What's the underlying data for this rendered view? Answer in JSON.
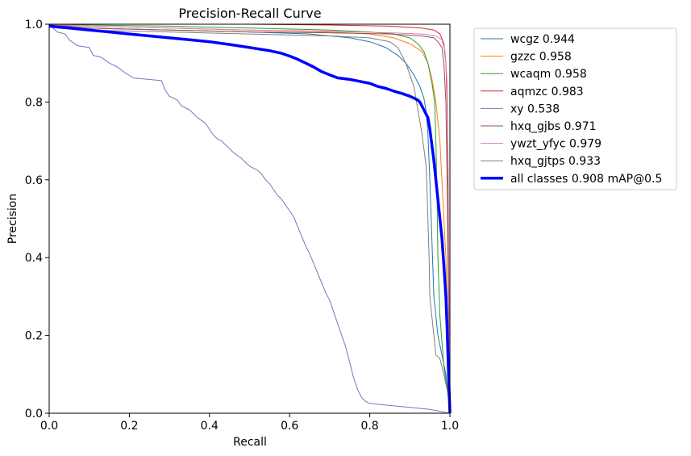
{
  "chart_data": {
    "type": "line",
    "title": "Precision-Recall Curve",
    "xlabel": "Recall",
    "ylabel": "Precision",
    "xlim": [
      0,
      1
    ],
    "ylim": [
      0,
      1
    ],
    "xticks": [
      "0.0",
      "0.2",
      "0.4",
      "0.6",
      "0.8",
      "1.0"
    ],
    "yticks": [
      "0.0",
      "0.2",
      "0.4",
      "0.6",
      "0.8",
      "1.0"
    ],
    "grid": false,
    "legend_position": "outside-right-top",
    "series": [
      {
        "name": "wcgz 0.944",
        "color": "#1f77b4",
        "line_width": 1,
        "points": [
          [
            0,
            1.0
          ],
          [
            0.02,
            0.995
          ],
          [
            0.1,
            0.99
          ],
          [
            0.3,
            0.985
          ],
          [
            0.5,
            0.98
          ],
          [
            0.65,
            0.975
          ],
          [
            0.75,
            0.965
          ],
          [
            0.8,
            0.955
          ],
          [
            0.84,
            0.94
          ],
          [
            0.87,
            0.92
          ],
          [
            0.89,
            0.9
          ],
          [
            0.91,
            0.87
          ],
          [
            0.925,
            0.84
          ],
          [
            0.935,
            0.81
          ],
          [
            0.94,
            0.78
          ],
          [
            0.945,
            0.72
          ],
          [
            0.95,
            0.6
          ],
          [
            0.955,
            0.45
          ],
          [
            0.96,
            0.3
          ],
          [
            0.97,
            0.2
          ],
          [
            0.98,
            0.15
          ],
          [
            0.99,
            0.1
          ],
          [
            1.0,
            0.0
          ]
        ]
      },
      {
        "name": "gzzc 0.958",
        "color": "#ff7f0e",
        "line_width": 1,
        "points": [
          [
            0,
            1.0
          ],
          [
            0.1,
            0.995
          ],
          [
            0.3,
            0.99
          ],
          [
            0.5,
            0.985
          ],
          [
            0.7,
            0.98
          ],
          [
            0.8,
            0.975
          ],
          [
            0.86,
            0.965
          ],
          [
            0.9,
            0.95
          ],
          [
            0.93,
            0.93
          ],
          [
            0.945,
            0.9
          ],
          [
            0.955,
            0.86
          ],
          [
            0.965,
            0.8
          ],
          [
            0.975,
            0.7
          ],
          [
            0.98,
            0.6
          ],
          [
            0.985,
            0.5
          ],
          [
            0.99,
            0.4
          ],
          [
            0.995,
            0.2
          ],
          [
            1.0,
            0.0
          ]
        ]
      },
      {
        "name": "wcaqm 0.958",
        "color": "#2ca02c",
        "line_width": 1,
        "points": [
          [
            0,
            1.0
          ],
          [
            0.1,
            0.998
          ],
          [
            0.3,
            0.995
          ],
          [
            0.5,
            0.99
          ],
          [
            0.7,
            0.985
          ],
          [
            0.8,
            0.98
          ],
          [
            0.86,
            0.975
          ],
          [
            0.9,
            0.965
          ],
          [
            0.92,
            0.95
          ],
          [
            0.935,
            0.93
          ],
          [
            0.945,
            0.9
          ],
          [
            0.955,
            0.85
          ],
          [
            0.962,
            0.8
          ],
          [
            0.965,
            0.7
          ],
          [
            0.968,
            0.55
          ],
          [
            0.97,
            0.4
          ],
          [
            0.975,
            0.25
          ],
          [
            0.985,
            0.12
          ],
          [
            0.995,
            0.05
          ],
          [
            1.0,
            0.0
          ]
        ]
      },
      {
        "name": "aqmzc 0.983",
        "color": "#d62728",
        "line_width": 1,
        "points": [
          [
            0,
            1.0
          ],
          [
            0.2,
            1.0
          ],
          [
            0.5,
            1.0
          ],
          [
            0.7,
            0.998
          ],
          [
            0.85,
            0.995
          ],
          [
            0.93,
            0.99
          ],
          [
            0.96,
            0.985
          ],
          [
            0.975,
            0.975
          ],
          [
            0.985,
            0.95
          ],
          [
            0.99,
            0.9
          ],
          [
            0.993,
            0.8
          ],
          [
            0.995,
            0.6
          ],
          [
            0.997,
            0.3
          ],
          [
            1.0,
            0.0
          ]
        ]
      },
      {
        "name": "xy 0.538",
        "color": "#9467bd",
        "line_width": 1,
        "points": [
          [
            0,
            1.0
          ],
          [
            0.01,
            0.99
          ],
          [
            0.02,
            0.98
          ],
          [
            0.04,
            0.975
          ],
          [
            0.05,
            0.96
          ],
          [
            0.07,
            0.945
          ],
          [
            0.1,
            0.94
          ],
          [
            0.11,
            0.92
          ],
          [
            0.13,
            0.915
          ],
          [
            0.15,
            0.9
          ],
          [
            0.17,
            0.89
          ],
          [
            0.19,
            0.875
          ],
          [
            0.21,
            0.862
          ],
          [
            0.23,
            0.86
          ],
          [
            0.28,
            0.855
          ],
          [
            0.29,
            0.83
          ],
          [
            0.3,
            0.815
          ],
          [
            0.32,
            0.805
          ],
          [
            0.33,
            0.79
          ],
          [
            0.35,
            0.78
          ],
          [
            0.37,
            0.76
          ],
          [
            0.39,
            0.745
          ],
          [
            0.4,
            0.73
          ],
          [
            0.41,
            0.715
          ],
          [
            0.42,
            0.705
          ],
          [
            0.43,
            0.7
          ],
          [
            0.44,
            0.69
          ],
          [
            0.45,
            0.68
          ],
          [
            0.46,
            0.67
          ],
          [
            0.48,
            0.655
          ],
          [
            0.49,
            0.645
          ],
          [
            0.5,
            0.635
          ],
          [
            0.52,
            0.625
          ],
          [
            0.53,
            0.615
          ],
          [
            0.54,
            0.6
          ],
          [
            0.55,
            0.59
          ],
          [
            0.56,
            0.575
          ],
          [
            0.57,
            0.56
          ],
          [
            0.58,
            0.55
          ],
          [
            0.59,
            0.535
          ],
          [
            0.6,
            0.52
          ],
          [
            0.61,
            0.505
          ],
          [
            0.62,
            0.48
          ],
          [
            0.63,
            0.455
          ],
          [
            0.64,
            0.43
          ],
          [
            0.65,
            0.41
          ],
          [
            0.66,
            0.385
          ],
          [
            0.67,
            0.36
          ],
          [
            0.68,
            0.335
          ],
          [
            0.69,
            0.31
          ],
          [
            0.7,
            0.29
          ],
          [
            0.71,
            0.26
          ],
          [
            0.72,
            0.23
          ],
          [
            0.73,
            0.2
          ],
          [
            0.74,
            0.17
          ],
          [
            0.75,
            0.13
          ],
          [
            0.76,
            0.09
          ],
          [
            0.77,
            0.06
          ],
          [
            0.78,
            0.04
          ],
          [
            0.79,
            0.03
          ],
          [
            0.8,
            0.025
          ],
          [
            0.85,
            0.02
          ],
          [
            0.9,
            0.015
          ],
          [
            0.95,
            0.01
          ],
          [
            1.0,
            0.0
          ]
        ]
      },
      {
        "name": "hxq_gjbs 0.971",
        "color": "#8c564b",
        "line_width": 1,
        "points": [
          [
            0,
            1.0
          ],
          [
            0.1,
            0.99
          ],
          [
            0.3,
            0.985
          ],
          [
            0.5,
            0.98
          ],
          [
            0.7,
            0.978
          ],
          [
            0.85,
            0.975
          ],
          [
            0.93,
            0.97
          ],
          [
            0.96,
            0.965
          ],
          [
            0.97,
            0.955
          ],
          [
            0.98,
            0.94
          ],
          [
            0.985,
            0.9
          ],
          [
            0.99,
            0.8
          ],
          [
            0.993,
            0.6
          ],
          [
            0.996,
            0.3
          ],
          [
            1.0,
            0.0
          ]
        ]
      },
      {
        "name": "ywzt_yfyc 0.979",
        "color": "#e377c2",
        "line_width": 1,
        "points": [
          [
            0,
            1.0
          ],
          [
            0.1,
            0.995
          ],
          [
            0.3,
            0.99
          ],
          [
            0.5,
            0.985
          ],
          [
            0.7,
            0.982
          ],
          [
            0.85,
            0.978
          ],
          [
            0.93,
            0.975
          ],
          [
            0.965,
            0.97
          ],
          [
            0.98,
            0.96
          ],
          [
            0.988,
            0.93
          ],
          [
            0.993,
            0.85
          ],
          [
            0.996,
            0.6
          ],
          [
            0.998,
            0.3
          ],
          [
            1.0,
            0.0
          ]
        ]
      },
      {
        "name": "hxq_gjtps 0.933",
        "color": "#7f7f7f",
        "line_width": 1,
        "points": [
          [
            0,
            1.0
          ],
          [
            0.02,
            0.99
          ],
          [
            0.1,
            0.985
          ],
          [
            0.3,
            0.98
          ],
          [
            0.5,
            0.975
          ],
          [
            0.7,
            0.97
          ],
          [
            0.8,
            0.965
          ],
          [
            0.85,
            0.955
          ],
          [
            0.87,
            0.94
          ],
          [
            0.88,
            0.92
          ],
          [
            0.89,
            0.9
          ],
          [
            0.9,
            0.87
          ],
          [
            0.91,
            0.84
          ],
          [
            0.915,
            0.81
          ],
          [
            0.92,
            0.78
          ],
          [
            0.925,
            0.75
          ],
          [
            0.93,
            0.72
          ],
          [
            0.935,
            0.68
          ],
          [
            0.94,
            0.64
          ],
          [
            0.942,
            0.6
          ],
          [
            0.945,
            0.5
          ],
          [
            0.948,
            0.4
          ],
          [
            0.95,
            0.3
          ],
          [
            0.955,
            0.25
          ],
          [
            0.96,
            0.2
          ],
          [
            0.965,
            0.15
          ],
          [
            0.975,
            0.14
          ],
          [
            0.985,
            0.1
          ],
          [
            0.995,
            0.05
          ],
          [
            1.0,
            0.0
          ]
        ]
      },
      {
        "name": "all classes 0.908 mAP@0.5",
        "color": "#0000ff",
        "line_width": 3.5,
        "points": [
          [
            0,
            0.995
          ],
          [
            0.05,
            0.99
          ],
          [
            0.1,
            0.985
          ],
          [
            0.15,
            0.98
          ],
          [
            0.2,
            0.975
          ],
          [
            0.25,
            0.97
          ],
          [
            0.3,
            0.965
          ],
          [
            0.35,
            0.96
          ],
          [
            0.4,
            0.955
          ],
          [
            0.45,
            0.948
          ],
          [
            0.5,
            0.94
          ],
          [
            0.55,
            0.932
          ],
          [
            0.58,
            0.925
          ],
          [
            0.6,
            0.918
          ],
          [
            0.62,
            0.91
          ],
          [
            0.64,
            0.9
          ],
          [
            0.66,
            0.89
          ],
          [
            0.68,
            0.878
          ],
          [
            0.7,
            0.87
          ],
          [
            0.72,
            0.862
          ],
          [
            0.75,
            0.858
          ],
          [
            0.78,
            0.852
          ],
          [
            0.8,
            0.848
          ],
          [
            0.82,
            0.84
          ],
          [
            0.84,
            0.835
          ],
          [
            0.86,
            0.828
          ],
          [
            0.88,
            0.822
          ],
          [
            0.9,
            0.815
          ],
          [
            0.91,
            0.81
          ],
          [
            0.92,
            0.805
          ],
          [
            0.925,
            0.8
          ],
          [
            0.93,
            0.79
          ],
          [
            0.935,
            0.78
          ],
          [
            0.94,
            0.77
          ],
          [
            0.945,
            0.76
          ],
          [
            0.95,
            0.73
          ],
          [
            0.955,
            0.69
          ],
          [
            0.96,
            0.65
          ],
          [
            0.965,
            0.6
          ],
          [
            0.97,
            0.55
          ],
          [
            0.975,
            0.5
          ],
          [
            0.98,
            0.45
          ],
          [
            0.985,
            0.38
          ],
          [
            0.99,
            0.3
          ],
          [
            0.993,
            0.22
          ],
          [
            0.996,
            0.12
          ],
          [
            1.0,
            0.0
          ]
        ]
      }
    ]
  }
}
